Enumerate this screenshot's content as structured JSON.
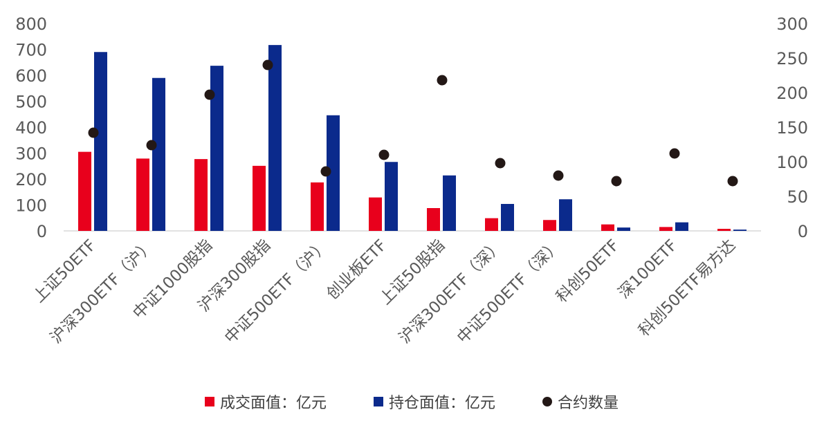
{
  "chart_data": {
    "type": "bar",
    "categories": [
      "上证50ETF",
      "沪深300ETF（沪）",
      "中证1000股指",
      "沪深300股指",
      "中证500ETF（沪）",
      "创业板ETF",
      "上证50股指",
      "沪深300ETF（深）",
      "中证500ETF（深）",
      "科创50ETF",
      "深100ETF",
      "科创50ETF易方达"
    ],
    "series": [
      {
        "name": "成交面值：亿元",
        "type": "bar",
        "axis": "left",
        "color": "#e8001c",
        "values": [
          305,
          279,
          277,
          251,
          187,
          129,
          88,
          49,
          42,
          25,
          15,
          8
        ]
      },
      {
        "name": "持仓面值：亿元",
        "type": "bar",
        "axis": "left",
        "color": "#0b2a8c",
        "values": [
          690,
          590,
          637,
          717,
          446,
          266,
          214,
          104,
          122,
          13,
          33,
          5
        ]
      },
      {
        "name": "合约数量",
        "type": "scatter",
        "axis": "right",
        "color": "#231816",
        "values": [
          142,
          124,
          197,
          240,
          86,
          110,
          218,
          98,
          80,
          72,
          112,
          72
        ]
      }
    ],
    "y_left": {
      "min": 0,
      "max": 800,
      "ticks": [
        0,
        100,
        200,
        300,
        400,
        500,
        600,
        700,
        800
      ]
    },
    "y_right": {
      "min": 0,
      "max": 300,
      "ticks": [
        0,
        50,
        100,
        150,
        200,
        250,
        300
      ]
    },
    "grid": false,
    "legend_position": "bottom"
  }
}
